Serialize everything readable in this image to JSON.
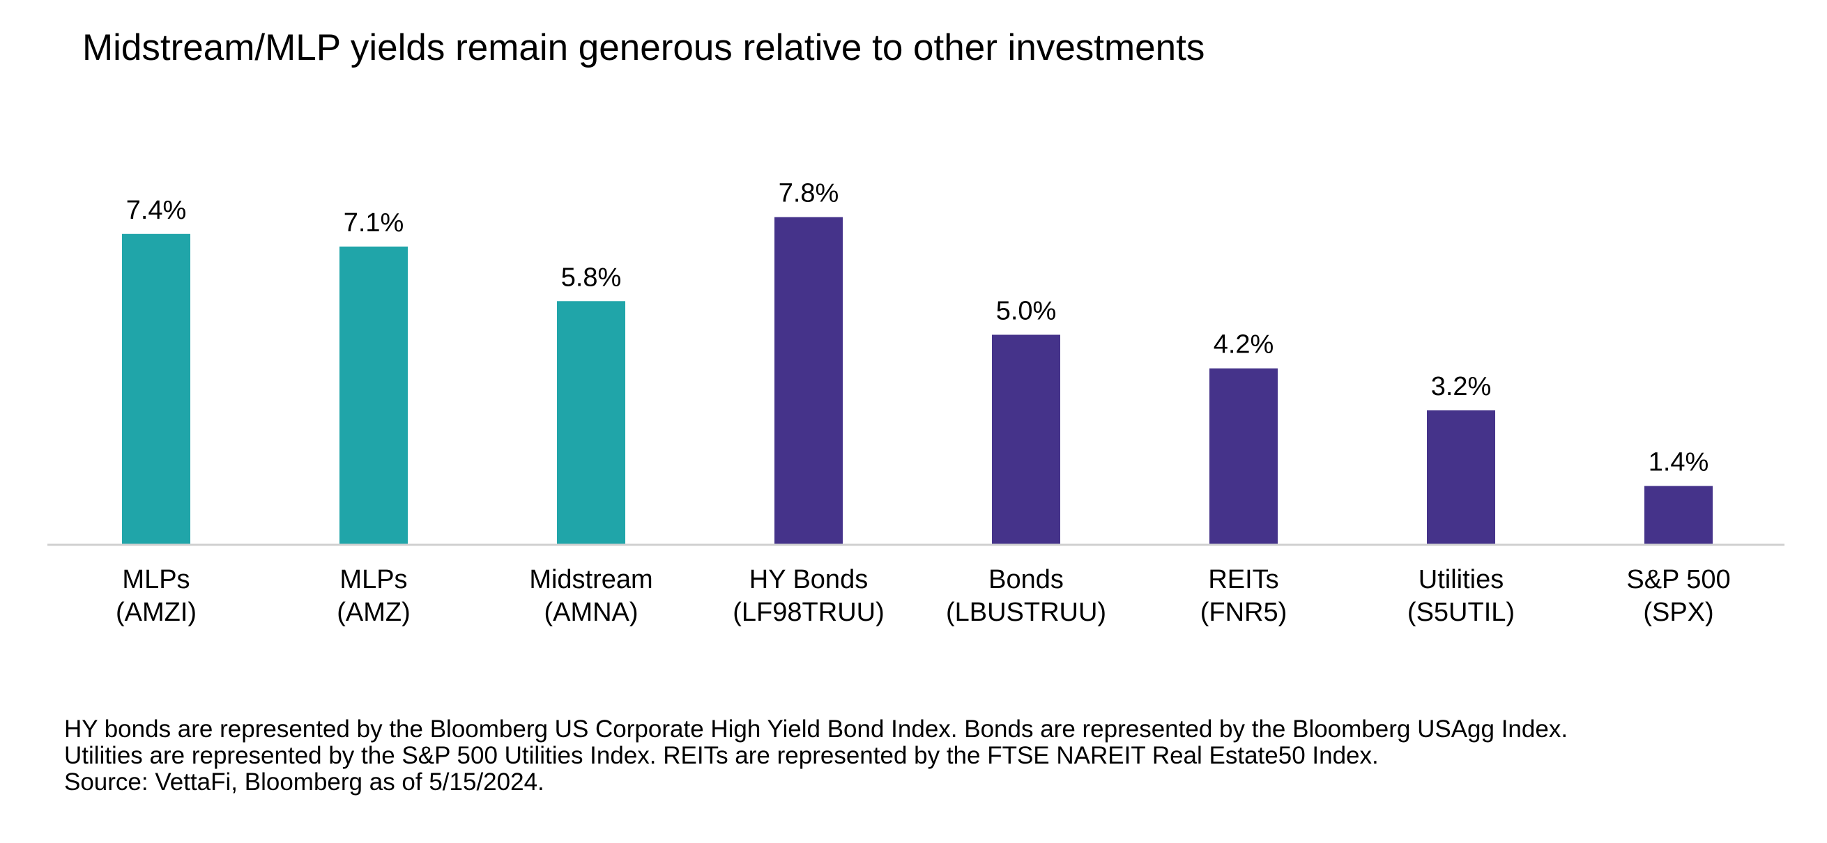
{
  "chart_data": {
    "type": "bar",
    "title": "Midstream/MLP yields remain generous relative to other investments",
    "categories": [
      [
        "MLPs",
        "(AMZI)"
      ],
      [
        "MLPs",
        "(AMZ)"
      ],
      [
        "Midstream",
        "(AMNA)"
      ],
      [
        "HY Bonds",
        "(LF98TRUU)"
      ],
      [
        "Bonds",
        "(LBUSTRUU)"
      ],
      [
        "REITs",
        "(FNR5)"
      ],
      [
        "Utilities",
        "(S5UTIL)"
      ],
      [
        "S&P 500",
        "(SPX)"
      ]
    ],
    "values": [
      7.4,
      7.1,
      5.8,
      7.8,
      5.0,
      4.2,
      3.2,
      1.4
    ],
    "data_labels": [
      "7.4%",
      "7.1%",
      "5.8%",
      "7.8%",
      "5.0%",
      "4.2%",
      "3.2%",
      "1.4%"
    ],
    "bar_colors": [
      "#20a5a9",
      "#20a5a9",
      "#20a5a9",
      "#45338a",
      "#45338a",
      "#45338a",
      "#45338a",
      "#45338a"
    ],
    "ylim": [
      0,
      8
    ],
    "xlabel": "",
    "ylabel": "",
    "grid": false,
    "legend": "none",
    "axis_color": "#d0d0d0"
  },
  "footnotes": {
    "line1": "HY bonds are represented by the Bloomberg US Corporate High Yield Bond Index. Bonds are represented by the Bloomberg USAgg Index.",
    "line2": "Utilities are represented by the S&P 500 Utilities Index. REITs are represented by the FTSE NAREIT Real Estate50 Index.",
    "line3": "Source: VettaFi, Bloomberg as of 5/15/2024."
  }
}
